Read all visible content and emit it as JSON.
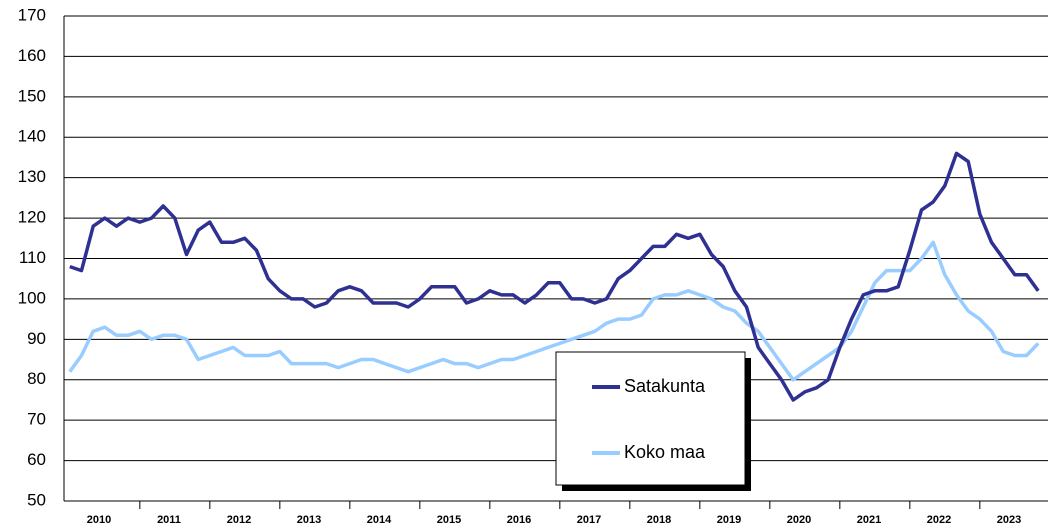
{
  "chart_data": {
    "type": "line",
    "categories": [
      null,
      null,
      null,
      "2010",
      null,
      null,
      null,
      null,
      null,
      "2011",
      null,
      null,
      null,
      null,
      null,
      "2012",
      null,
      null,
      null,
      null,
      null,
      "2013",
      null,
      null,
      null,
      null,
      null,
      "2014",
      null,
      null,
      null,
      null,
      null,
      "2015",
      null,
      null,
      null,
      null,
      null,
      "2016",
      null,
      null,
      null,
      null,
      null,
      "2017",
      null,
      null,
      null,
      null,
      null,
      "2018",
      null,
      null,
      null,
      null,
      null,
      "2019",
      null,
      null,
      null,
      null,
      null,
      "2020",
      null,
      null,
      null,
      null,
      null,
      "2021",
      null,
      null,
      null,
      null,
      null,
      "2022",
      null,
      null,
      null,
      null,
      null,
      "2023",
      null,
      null
    ],
    "series": [
      {
        "name": "Satakunta",
        "color": "#2e3192",
        "values": [
          108,
          107,
          118,
          120,
          118,
          120,
          119,
          120,
          123,
          120,
          111,
          117,
          119,
          114,
          114,
          115,
          112,
          105,
          102,
          100,
          100,
          98,
          99,
          102,
          103,
          102,
          99,
          99,
          99,
          98,
          100,
          103,
          103,
          103,
          99,
          100,
          102,
          101,
          101,
          99,
          101,
          104,
          104,
          100,
          100,
          99,
          100,
          105,
          107,
          110,
          113,
          113,
          116,
          115,
          116,
          111,
          108,
          102,
          98,
          88,
          84,
          80,
          75,
          77,
          78,
          80,
          88,
          95,
          101,
          102,
          102,
          103,
          112,
          122,
          124,
          128,
          136,
          134,
          121,
          114,
          110,
          106,
          106,
          102
        ]
      },
      {
        "name": "Koko maa",
        "color": "#99ccff",
        "values": [
          82,
          86,
          92,
          93,
          91,
          91,
          92,
          90,
          91,
          91,
          90,
          85,
          86,
          87,
          88,
          86,
          86,
          86,
          87,
          84,
          84,
          84,
          84,
          83,
          84,
          85,
          85,
          84,
          83,
          82,
          83,
          84,
          85,
          84,
          84,
          83,
          84,
          85,
          85,
          86,
          87,
          88,
          89,
          90,
          91,
          92,
          94,
          95,
          95,
          96,
          100,
          101,
          101,
          102,
          101,
          100,
          98,
          97,
          94,
          92,
          88,
          84,
          80,
          82,
          84,
          86,
          88,
          92,
          98,
          104,
          107,
          107,
          107,
          110,
          114,
          106,
          101,
          97,
          95,
          92,
          87,
          86,
          86,
          89
        ]
      }
    ],
    "ylim": [
      50,
      170
    ],
    "yticks": [
      50,
      60,
      70,
      80,
      90,
      100,
      110,
      120,
      130,
      140,
      150,
      160,
      170
    ],
    "grid": true
  }
}
